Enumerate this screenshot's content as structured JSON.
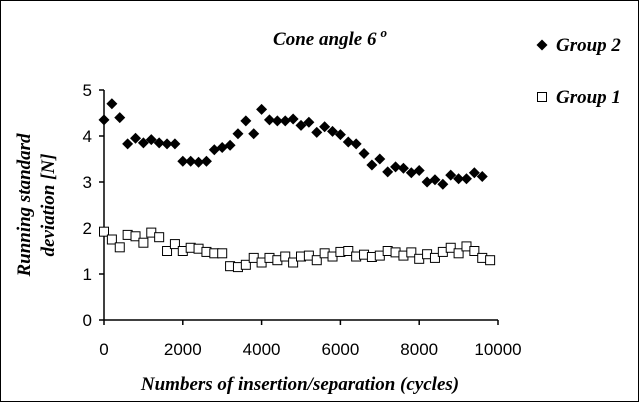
{
  "chart_data": {
    "type": "scatter",
    "title": {
      "text": "Cone angle 6",
      "superscript": "o"
    },
    "xlabel": "Numbers of insertion/separation (cycles)",
    "ylabel": [
      "Running standard",
      "deviation [N]"
    ],
    "xlim": [
      0,
      10000
    ],
    "xticks": [
      0,
      2000,
      4000,
      6000,
      8000,
      10000
    ],
    "ylim": [
      0,
      5
    ],
    "yticks": [
      0,
      1,
      2,
      3,
      4,
      5
    ],
    "grid": false,
    "legend": "right",
    "series": [
      {
        "name": "Group 2",
        "marker": "diamond",
        "color": "#000000",
        "x": [
          0,
          200,
          400,
          600,
          800,
          1000,
          1200,
          1400,
          1600,
          1800,
          2000,
          2200,
          2400,
          2600,
          2800,
          3000,
          3200,
          3400,
          3600,
          3800,
          4000,
          4200,
          4400,
          4600,
          4800,
          5000,
          5200,
          5400,
          5600,
          5800,
          6000,
          6200,
          6400,
          6600,
          6800,
          7000,
          7200,
          7400,
          7600,
          7800,
          8000,
          8200,
          8400,
          8600,
          8800,
          9000,
          9200,
          9400,
          9600
        ],
        "values": [
          4.35,
          4.7,
          4.4,
          3.83,
          3.95,
          3.85,
          3.92,
          3.85,
          3.83,
          3.83,
          3.45,
          3.45,
          3.43,
          3.45,
          3.7,
          3.75,
          3.8,
          4.05,
          4.33,
          4.05,
          4.58,
          4.35,
          4.33,
          4.33,
          4.37,
          4.23,
          4.3,
          4.08,
          4.2,
          4.1,
          4.03,
          3.87,
          3.83,
          3.62,
          3.37,
          3.5,
          3.22,
          3.33,
          3.3,
          3.2,
          3.25,
          3.0,
          3.05,
          2.95,
          3.15,
          3.07,
          3.07,
          3.2,
          3.12
        ]
      },
      {
        "name": "Group 1",
        "marker": "square",
        "color": "#000000",
        "x": [
          0,
          200,
          400,
          600,
          800,
          1000,
          1200,
          1400,
          1600,
          1800,
          2000,
          2200,
          2400,
          2600,
          2800,
          3000,
          3200,
          3400,
          3600,
          3800,
          4000,
          4200,
          4400,
          4600,
          4800,
          5000,
          5200,
          5400,
          5600,
          5800,
          6000,
          6200,
          6400,
          6600,
          6800,
          7000,
          7200,
          7400,
          7600,
          7800,
          8000,
          8200,
          8400,
          8600,
          8800,
          9000,
          9200,
          9400,
          9600,
          9800
        ],
        "values": [
          1.92,
          1.75,
          1.58,
          1.85,
          1.82,
          1.68,
          1.9,
          1.8,
          1.5,
          1.65,
          1.5,
          1.57,
          1.55,
          1.48,
          1.45,
          1.45,
          1.17,
          1.15,
          1.2,
          1.35,
          1.25,
          1.35,
          1.3,
          1.38,
          1.25,
          1.38,
          1.4,
          1.3,
          1.45,
          1.38,
          1.48,
          1.5,
          1.38,
          1.42,
          1.37,
          1.4,
          1.5,
          1.47,
          1.4,
          1.47,
          1.33,
          1.43,
          1.35,
          1.48,
          1.57,
          1.45,
          1.6,
          1.5,
          1.35,
          1.3
        ]
      }
    ]
  }
}
